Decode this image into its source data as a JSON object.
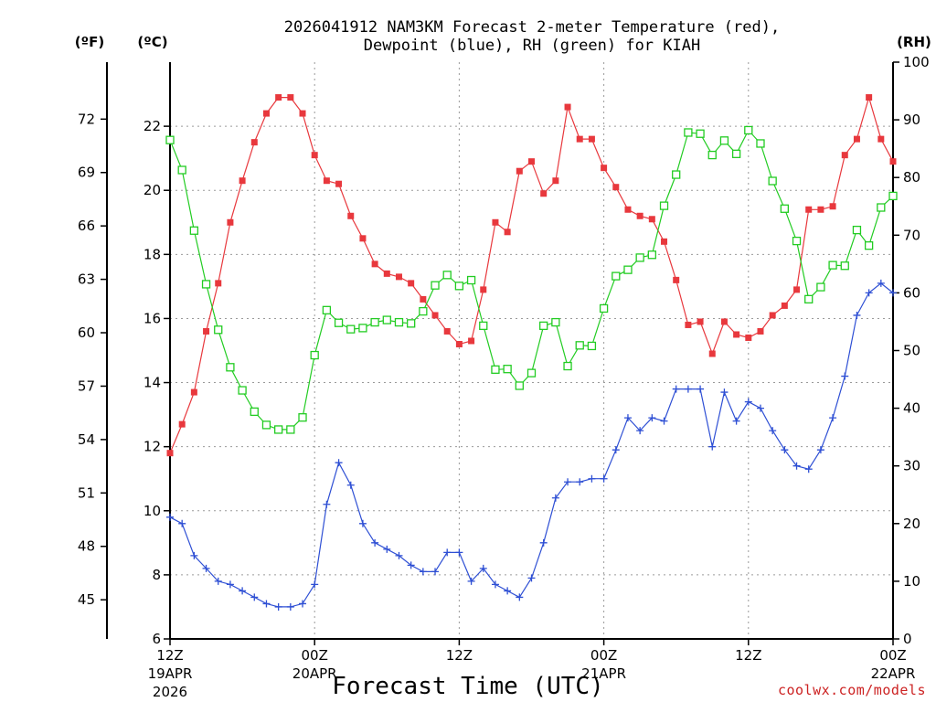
{
  "chart_data": {
    "type": "line",
    "title": "2026041912 NAM3KM Forecast 2-meter Temperature (red),",
    "subtitle": "Dewpoint (blue), RH (green) for KIAH",
    "xlabel": "Forecast Time (UTC)",
    "credit": "coolwx.com/models",
    "left_units": {
      "fahrenheit": "(ºF)",
      "celsius": "(ºC)"
    },
    "right_units": "(RH)",
    "x_range_hours": [
      0,
      60
    ],
    "celsius_axis": {
      "range": [
        6,
        24
      ],
      "ticks": [
        "6",
        "8",
        "10",
        "12",
        "14",
        "16",
        "18",
        "20",
        "22"
      ]
    },
    "fahrenheit_axis": {
      "ticks": [
        "45",
        "48",
        "51",
        "54",
        "57",
        "60",
        "63",
        "66",
        "69",
        "72"
      ]
    },
    "rh_axis": {
      "range": [
        0,
        100
      ],
      "ticks": [
        "0",
        "10",
        "20",
        "30",
        "40",
        "50",
        "60",
        "70",
        "80",
        "90",
        "100"
      ]
    },
    "x_ticks": [
      {
        "hour": 0,
        "lines": [
          "12Z",
          "19APR",
          "2026"
        ]
      },
      {
        "hour": 12,
        "lines": [
          "00Z",
          "20APR"
        ]
      },
      {
        "hour": 24,
        "lines": [
          "12Z"
        ]
      },
      {
        "hour": 36,
        "lines": [
          "00Z",
          "21APR"
        ]
      },
      {
        "hour": 48,
        "lines": [
          "12Z"
        ]
      },
      {
        "hour": 60,
        "lines": [
          "00Z",
          "22APR"
        ]
      }
    ],
    "series": [
      {
        "name": "2-meter Temperature (°C)",
        "color": "#e8383d",
        "marker": "filled-square",
        "axis": "celsius",
        "values": [
          11.8,
          12.7,
          13.7,
          15.6,
          17.1,
          19.0,
          20.3,
          21.5,
          22.4,
          22.9,
          22.9,
          22.4,
          21.1,
          20.3,
          20.2,
          19.2,
          18.5,
          17.7,
          17.4,
          17.3,
          17.1,
          16.6,
          16.1,
          15.6,
          15.2,
          15.3,
          16.9,
          19.0,
          18.7,
          20.6,
          20.9,
          19.9,
          20.3,
          22.6,
          21.6,
          21.6,
          20.7,
          20.1,
          19.4,
          19.2,
          19.1,
          18.4,
          17.2,
          15.8,
          15.9,
          14.9,
          15.9,
          15.5,
          15.4,
          15.6,
          16.1,
          16.4,
          16.9,
          19.4,
          19.4,
          19.5,
          21.1,
          21.6,
          22.9,
          21.6,
          20.9
        ]
      },
      {
        "name": "Dewpoint (°C)",
        "color": "#2e4fd4",
        "marker": "plus",
        "axis": "celsius",
        "values": [
          9.8,
          9.6,
          8.6,
          8.2,
          7.8,
          7.7,
          7.5,
          7.3,
          7.1,
          7.0,
          7.0,
          7.1,
          7.7,
          10.2,
          11.5,
          10.8,
          9.6,
          9.0,
          8.8,
          8.6,
          8.3,
          8.1,
          8.1,
          8.7,
          8.7,
          7.8,
          8.2,
          7.7,
          7.5,
          7.3,
          7.9,
          9.0,
          10.4,
          10.9,
          10.9,
          11.0,
          11.0,
          11.9,
          12.9,
          12.5,
          12.9,
          12.8,
          13.8,
          13.8,
          13.8,
          12.0,
          13.7,
          12.8,
          13.4,
          13.2,
          12.5,
          11.9,
          11.4,
          11.3,
          11.9,
          12.9,
          14.2,
          16.1,
          16.8,
          17.1,
          16.8
        ]
      },
      {
        "name": "RH (%)",
        "color": "#22cc22",
        "marker": "open-square",
        "axis": "rh",
        "values": [
          86.5,
          81.3,
          70.8,
          61.5,
          53.6,
          47.1,
          43.1,
          39.4,
          37.1,
          36.3,
          36.3,
          38.4,
          49.2,
          57.0,
          54.8,
          53.7,
          53.9,
          54.9,
          55.3,
          54.9,
          54.7,
          56.8,
          61.3,
          63.1,
          61.2,
          62.2,
          54.3,
          46.7,
          46.8,
          43.9,
          46.1,
          54.3,
          54.9,
          47.3,
          50.9,
          50.8,
          57.3,
          62.9,
          64.0,
          66.1,
          66.6,
          75.1,
          80.5,
          87.8,
          87.6,
          83.9,
          86.4,
          84.1,
          88.2,
          85.9,
          79.4,
          74.6,
          69.0,
          58.9,
          61.0,
          64.8,
          64.7,
          70.9,
          68.2,
          74.8,
          76.8
        ]
      }
    ]
  }
}
